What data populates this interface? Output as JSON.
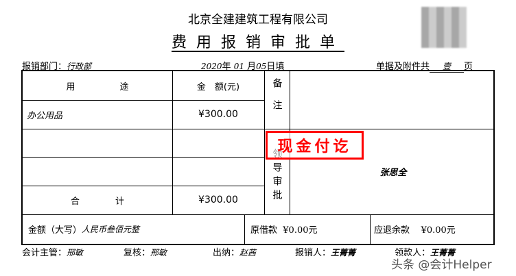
{
  "header": {
    "company": "北京全建建筑工程有限公司",
    "title": "费用报销审批单"
  },
  "meta": {
    "dept_label": "报销部门：",
    "dept_value": "行政部",
    "year": "2020",
    "year_unit": "年",
    "month": "01",
    "month_unit": "月",
    "day": "05",
    "day_unit": "日填",
    "attach_label": "单据及附件共",
    "attach_value": "壹",
    "attach_unit": "页"
  },
  "table": {
    "col_purpose": "用　　　　　途",
    "col_amount": "金　额(元)",
    "remarks_label": "备注",
    "approval_label": "领导审批",
    "rows": [
      {
        "purpose": "办公用品",
        "amount": "¥300.00"
      }
    ],
    "total_label": "合　　　　计",
    "total_amount": "¥300.00",
    "approver": "张思全",
    "capital_label": "金额（大写）",
    "capital_value": "人民币叁佰元整",
    "loan_label": "原借款",
    "loan_value": "¥0.00元",
    "refund_label": "应退余款",
    "refund_value": "¥0.00元"
  },
  "stamp": {
    "text": "现金付讫",
    "color": "#ff0000"
  },
  "footer": {
    "accountant_label": "会计主管：",
    "accountant": "邢敏",
    "reviewer_label": "复核：",
    "reviewer": "邢敏",
    "cashier_label": "出纳：",
    "cashier": "赵茜",
    "claimant_label": "报销人：",
    "claimant": "王菁菁",
    "receiver_label": "领款人：",
    "receiver": "王菁菁"
  },
  "watermark": "头条 @会计Helper",
  "qr_icon": "qr-code-icon"
}
